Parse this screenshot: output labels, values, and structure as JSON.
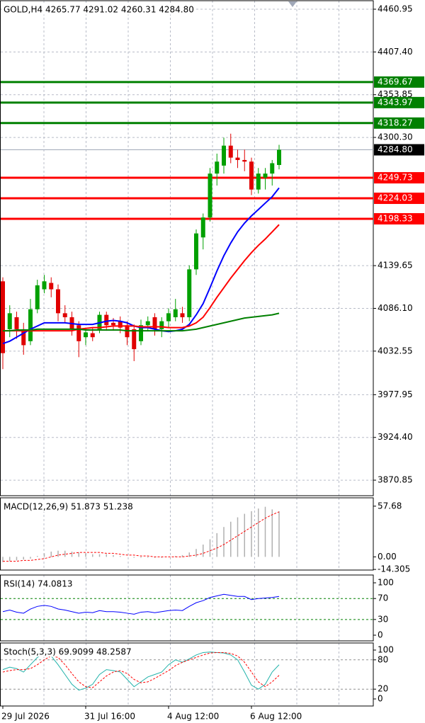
{
  "chart_data": [
    {
      "type": "candlestick",
      "title": "GOLD,H4  4265.77 4291.02 4260.31 4284.80",
      "categories": [
        "29 Jul 2026",
        null,
        null,
        null,
        null,
        null,
        null,
        null,
        null,
        null,
        null,
        null,
        "31 Jul 16:00",
        null,
        null,
        null,
        null,
        null,
        null,
        null,
        null,
        null,
        null,
        null,
        "4 Aug 12:00",
        null,
        null,
        null,
        null,
        null,
        null,
        null,
        null,
        null,
        null,
        null,
        "6 Aug 12:00",
        null,
        null,
        null,
        null
      ],
      "open": [
        4120,
        4060,
        4075,
        4060,
        4045,
        4085,
        4110,
        4118,
        4110,
        4080,
        4075,
        4065,
        4050,
        4055,
        4060,
        4078,
        4068,
        4070,
        4065,
        4060,
        4045,
        4065,
        4075,
        4060,
        4070,
        4075,
        4080,
        4075,
        4135,
        4175,
        4200,
        4255,
        4265,
        4290,
        4275,
        4272,
        4270,
        4235,
        4250,
        4255,
        4265.77
      ],
      "high": [
        4125,
        4090,
        4082,
        4068,
        4098,
        4122,
        4128,
        4125,
        4116,
        4090,
        4082,
        4070,
        4062,
        4062,
        4082,
        4082,
        4074,
        4076,
        4070,
        4066,
        4072,
        4076,
        4080,
        4075,
        4086,
        4098,
        4088,
        4140,
        4185,
        4205,
        4262,
        4280,
        4300,
        4305,
        4285,
        4285,
        4275,
        4262,
        4262,
        4272,
        4291.02
      ],
      "low": [
        4010,
        4050,
        4048,
        4028,
        4040,
        4080,
        4105,
        4100,
        4070,
        4068,
        4052,
        4025,
        4040,
        4045,
        4055,
        4058,
        4058,
        4055,
        4040,
        4020,
        4040,
        4058,
        4052,
        4050,
        4062,
        4070,
        4068,
        4070,
        4128,
        4160,
        4195,
        4240,
        4255,
        4268,
        4262,
        4258,
        4228,
        4230,
        4235,
        4240,
        4260.31
      ],
      "close": [
        4030,
        4080,
        4060,
        4040,
        4085,
        4115,
        4120,
        4110,
        4080,
        4075,
        4060,
        4045,
        4056,
        4050,
        4078,
        4065,
        4065,
        4062,
        4050,
        4035,
        4065,
        4070,
        4060,
        4070,
        4080,
        4085,
        4075,
        4135,
        4180,
        4200,
        4255,
        4270,
        4290,
        4275,
        4272,
        4270,
        4235,
        4255,
        4255,
        4268,
        4284.8
      ],
      "up_color": "#00a000",
      "down_color": "#e00000",
      "series": [
        {
          "color": "#0000ff",
          "values": [
            4042,
            4045,
            4050,
            4055,
            4060,
            4064,
            4068,
            4068,
            4068,
            4068,
            4067,
            4066,
            4066,
            4066,
            4068,
            4070,
            4071,
            4070,
            4068,
            4064,
            4062,
            4062,
            4060,
            4058,
            4057,
            4058,
            4060,
            4066,
            4078,
            4092,
            4112,
            4133,
            4152,
            4168,
            4182,
            4193,
            4202,
            4210,
            4218,
            4226,
            4237
          ]
        },
        {
          "color": "#ff0000",
          "values": [
            4058,
            4058,
            4058,
            4058,
            4058,
            4058,
            4058,
            4058,
            4058,
            4058,
            4058,
            4060,
            4061,
            4062,
            4062,
            4063,
            4064,
            4064,
            4064,
            4064,
            4063,
            4063,
            4063,
            4063,
            4062,
            4062,
            4062,
            4064,
            4068,
            4075,
            4087,
            4100,
            4112,
            4124,
            4135,
            4146,
            4156,
            4165,
            4173,
            4182,
            4191
          ]
        },
        {
          "color": "#008000",
          "values": [
            4058,
            4058,
            4059,
            4059,
            4059,
            4060,
            4060,
            4060,
            4060,
            4060,
            4060,
            4060,
            4059,
            4059,
            4059,
            4059,
            4059,
            4059,
            4058,
            4058,
            4058,
            4058,
            4058,
            4058,
            4058,
            4058,
            4058,
            4059,
            4060,
            4062,
            4064,
            4066,
            4068,
            4070,
            4072,
            4074,
            4075,
            4076,
            4077,
            4078,
            4080
          ]
        }
      ],
      "levels": [
        {
          "value": 4369.67,
          "color": "#008000"
        },
        {
          "value": 4343.97,
          "color": "#008000"
        },
        {
          "value": 4318.27,
          "color": "#008000"
        },
        {
          "value": 4249.73,
          "color": "#ff0000"
        },
        {
          "value": 4224.03,
          "color": "#ff0000"
        },
        {
          "value": 4198.33,
          "color": "#ff0000"
        }
      ],
      "last": {
        "value": 4284.8,
        "label": "4284.80"
      },
      "ylim": [
        3851.4,
        4471.6
      ],
      "yticks": [
        4460.95,
        {
          "value": 4407.4,
          "label": "4407.40"
        },
        4353.85,
        {
          "value": 4300.3,
          "label": "4300.30"
        },
        4139.65,
        {
          "value": 4086.1,
          "label": "4086.10"
        },
        4032.55,
        3977.95,
        {
          "value": 3924.4,
          "label": "3924.40"
        },
        3870.85
      ],
      "grid": true
    },
    {
      "type": "macd",
      "title": "MACD(12,26,9) 51.873 51.238",
      "series": [
        {
          "color": "#b0b0b0",
          "values": [
            -6,
            -5,
            -4,
            -3,
            -2,
            1,
            4,
            6,
            7,
            7,
            6,
            5,
            4,
            3,
            3,
            3,
            2,
            1,
            0,
            -1,
            -1,
            -1,
            -1,
            -1,
            0,
            1,
            2,
            5,
            9,
            14,
            20,
            27,
            34,
            40,
            45,
            49,
            52,
            55,
            57,
            54,
            51.873
          ]
        },
        {
          "color": "#ff0000",
          "values": [
            -5,
            -5,
            -5,
            -4,
            -4,
            -3,
            -2,
            0,
            2,
            3,
            4,
            5,
            5,
            5,
            5,
            4,
            4,
            3,
            2,
            2,
            1,
            1,
            0,
            0,
            0,
            0,
            0,
            1,
            2,
            4,
            7,
            10,
            14,
            19,
            24,
            29,
            34,
            39,
            44,
            48,
            51.238
          ]
        }
      ],
      "ylim": [
        -15,
        67.2
      ],
      "yticks": [
        57.68,
        {
          "value": 0,
          "label": "0.00"
        },
        -14.305
      ]
    },
    {
      "type": "line",
      "title": "RSI(14) 74.0813",
      "series": [
        {
          "color": "#0000ff",
          "values": [
            45,
            48,
            44,
            42,
            50,
            55,
            57,
            55,
            50,
            48,
            45,
            42,
            44,
            43,
            47,
            45,
            45,
            44,
            42,
            40,
            44,
            45,
            43,
            45,
            47,
            48,
            47,
            55,
            62,
            66,
            72,
            75,
            78,
            76,
            74,
            74,
            68,
            70,
            71,
            72,
            74.0813
          ]
        }
      ],
      "levels": [
        {
          "value": 70,
          "color": "#008000"
        },
        {
          "value": 30,
          "color": "#008000"
        }
      ],
      "ylim": [
        -10.8,
        114.9
      ],
      "yticks": [
        100,
        70,
        30,
        0
      ]
    },
    {
      "type": "line",
      "title": "Stoch(5,3,3) 69.9099 48.2587",
      "series": [
        {
          "color": "#20b2aa",
          "values": [
            60,
            65,
            62,
            55,
            70,
            85,
            92,
            88,
            70,
            50,
            30,
            18,
            22,
            30,
            50,
            60,
            58,
            55,
            40,
            25,
            35,
            45,
            50,
            55,
            70,
            80,
            75,
            82,
            90,
            95,
            96,
            95,
            94,
            90,
            80,
            55,
            28,
            20,
            30,
            55,
            69.9099
          ]
        },
        {
          "color": "#ff0000",
          "dashed": true,
          "values": [
            55,
            58,
            60,
            60,
            62,
            70,
            80,
            88,
            85,
            70,
            52,
            35,
            25,
            23,
            35,
            47,
            55,
            58,
            52,
            40,
            33,
            35,
            42,
            50,
            58,
            68,
            75,
            80,
            85,
            90,
            94,
            95,
            95,
            93,
            88,
            75,
            55,
            35,
            25,
            35,
            48.2587
          ]
        }
      ],
      "levels": [
        {
          "value": 80,
          "color": "#909090"
        },
        {
          "value": 20,
          "color": "#909090"
        }
      ],
      "ylim": [
        -14.5,
        114.5
      ],
      "yticks": [
        100,
        80,
        20,
        0
      ]
    }
  ]
}
